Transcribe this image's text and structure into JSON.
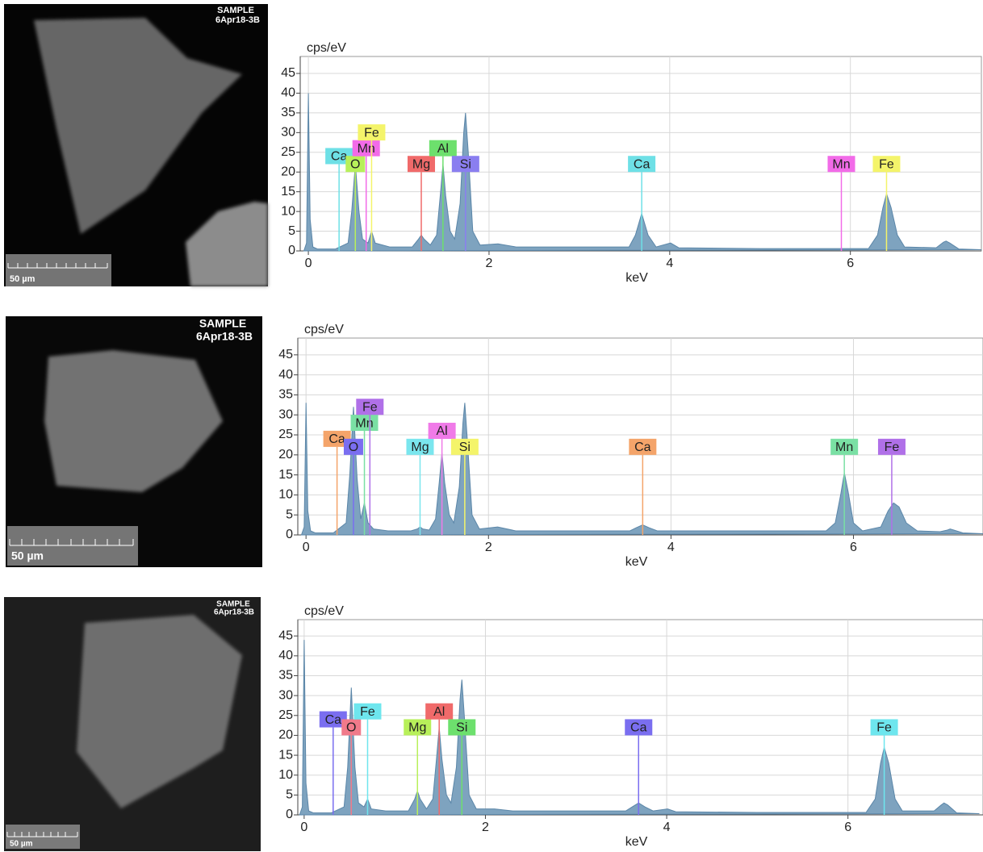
{
  "images": [
    {
      "title": [
        "SAMPLE",
        "6Apr18-3B"
      ],
      "scale": "50 µm"
    },
    {
      "title": [
        "SAMPLE",
        "6Apr18-3B"
      ],
      "scale": "50 µm"
    },
    {
      "title": [
        "SAMPLE",
        "6Apr18-3B"
      ],
      "scale": "50 µm"
    }
  ],
  "chart_data": [
    {
      "type": "area",
      "y_label": "cps/eV",
      "x_label": "keV",
      "xlim": [
        -0.09,
        7.45
      ],
      "ylim": [
        0,
        49.3
      ],
      "xticks": [
        0,
        2,
        4,
        6
      ],
      "yticks": [
        0,
        5,
        10,
        15,
        20,
        25,
        30,
        35,
        40,
        45
      ],
      "grid": true,
      "color": "#7ea3bf",
      "x": [
        -0.05,
        -0.02,
        0,
        0.02,
        0.05,
        0.1,
        0.3,
        0.44,
        0.48,
        0.52,
        0.56,
        0.6,
        0.66,
        0.7,
        0.74,
        0.9,
        1.15,
        1.22,
        1.25,
        1.28,
        1.35,
        1.42,
        1.46,
        1.49,
        1.52,
        1.57,
        1.62,
        1.68,
        1.72,
        1.74,
        1.77,
        1.82,
        1.9,
        2.1,
        2.3,
        3.0,
        3.55,
        3.62,
        3.69,
        3.76,
        3.85,
        4.01,
        4.1,
        5.0,
        6.2,
        6.3,
        6.36,
        6.4,
        6.45,
        6.52,
        6.6,
        6.95,
        7.03,
        7.06,
        7.1,
        7.2,
        7.45
      ],
      "values": [
        0,
        2,
        40,
        8,
        1,
        0.5,
        0.5,
        2,
        10,
        22,
        10,
        3,
        2,
        5,
        2,
        1,
        1,
        3,
        4,
        3,
        1.5,
        4,
        14,
        22,
        14,
        5,
        3,
        12,
        30,
        35,
        25,
        5,
        1.5,
        1.8,
        1,
        1,
        1,
        4,
        9.5,
        4,
        1,
        2,
        0.8,
        0.6,
        0.6,
        4,
        11,
        14.5,
        11,
        4,
        1,
        0.8,
        2.2,
        2.5,
        2,
        0.5,
        0.3
      ],
      "markers": [
        {
          "label": "Ca",
          "x": 0.34,
          "height": 22,
          "color": "#6ee0e6"
        },
        {
          "label": "O",
          "x": 0.52,
          "height": 20,
          "color": "#b8f05a"
        },
        {
          "label": "Mn",
          "x": 0.64,
          "height": 24,
          "color": "#f26be8"
        },
        {
          "label": "Fe",
          "x": 0.7,
          "height": 28,
          "color": "#f4f46a"
        },
        {
          "label": "Mg",
          "x": 1.25,
          "height": 20,
          "color": "#f06a6a"
        },
        {
          "label": "Al",
          "x": 1.49,
          "height": 24,
          "color": "#6de06d"
        },
        {
          "label": "Si",
          "x": 1.74,
          "height": 20,
          "color": "#8a7ef0"
        },
        {
          "label": "Ca",
          "x": 3.69,
          "height": 20,
          "color": "#6ee0e6"
        },
        {
          "label": "Mn",
          "x": 5.9,
          "height": 20,
          "color": "#f26be8"
        },
        {
          "label": "Fe",
          "x": 6.4,
          "height": 20,
          "color": "#f4f46a"
        }
      ]
    },
    {
      "type": "area",
      "y_label": "cps/eV",
      "x_label": "keV",
      "xlim": [
        -0.09,
        7.42
      ],
      "ylim": [
        0,
        49.2
      ],
      "xticks": [
        0,
        2,
        4,
        6
      ],
      "yticks": [
        0,
        5,
        10,
        15,
        20,
        25,
        30,
        35,
        40,
        45
      ],
      "grid": true,
      "color": "#7ea3bf",
      "x": [
        -0.05,
        -0.02,
        0,
        0.02,
        0.05,
        0.1,
        0.3,
        0.44,
        0.48,
        0.52,
        0.56,
        0.6,
        0.64,
        0.68,
        0.74,
        0.9,
        1.15,
        1.22,
        1.25,
        1.28,
        1.35,
        1.42,
        1.46,
        1.49,
        1.52,
        1.57,
        1.62,
        1.68,
        1.72,
        1.74,
        1.77,
        1.82,
        1.9,
        2.1,
        2.3,
        3.0,
        3.55,
        3.62,
        3.69,
        3.76,
        3.85,
        4.5,
        5.7,
        5.8,
        5.86,
        5.9,
        5.94,
        6.0,
        6.1,
        6.3,
        6.38,
        6.44,
        6.5,
        6.58,
        6.7,
        6.95,
        7.03,
        7.06,
        7.1,
        7.2,
        7.42
      ],
      "values": [
        0,
        2,
        33,
        6,
        1,
        0.5,
        0.5,
        3,
        15,
        32,
        14,
        4,
        8,
        3,
        1.5,
        1,
        1,
        1.5,
        2,
        1.5,
        1.2,
        4,
        13,
        20.5,
        13,
        5,
        3,
        12,
        28,
        33,
        23,
        5,
        1.5,
        2,
        1,
        1,
        1,
        1.8,
        2.5,
        1.8,
        1,
        1,
        1,
        3,
        10,
        15.5,
        11,
        3,
        1,
        2,
        6,
        8,
        7,
        3,
        1,
        0.8,
        1.2,
        1.5,
        1.2,
        0.5,
        0.3
      ],
      "markers": [
        {
          "label": "Ca",
          "x": 0.34,
          "height": 22,
          "color": "#f4a46a"
        },
        {
          "label": "O",
          "x": 0.52,
          "height": 20,
          "color": "#7a6ef0"
        },
        {
          "label": "Mn",
          "x": 0.64,
          "height": 26,
          "color": "#7ae0a4"
        },
        {
          "label": "Fe",
          "x": 0.7,
          "height": 30,
          "color": "#b070e8"
        },
        {
          "label": "Mg",
          "x": 1.25,
          "height": 20,
          "color": "#7ae6ee"
        },
        {
          "label": "Al",
          "x": 1.49,
          "height": 24,
          "color": "#f07ae8"
        },
        {
          "label": "Si",
          "x": 1.74,
          "height": 20,
          "color": "#f4f46a"
        },
        {
          "label": "Ca",
          "x": 3.69,
          "height": 20,
          "color": "#f4a46a"
        },
        {
          "label": "Mn",
          "x": 5.9,
          "height": 20,
          "color": "#7ae0a4"
        },
        {
          "label": "Fe",
          "x": 6.42,
          "height": 20,
          "color": "#b070e8"
        }
      ]
    },
    {
      "type": "area",
      "y_label": "cps/eV",
      "x_label": "keV",
      "xlim": [
        -0.07,
        7.49
      ],
      "ylim": [
        0,
        49.1
      ],
      "xticks": [
        0,
        2,
        4,
        6
      ],
      "yticks": [
        0,
        5,
        10,
        15,
        20,
        25,
        30,
        35,
        40,
        45
      ],
      "grid": true,
      "color": "#7ea3bf",
      "x": [
        -0.05,
        -0.02,
        0,
        0.02,
        0.05,
        0.1,
        0.3,
        0.44,
        0.48,
        0.52,
        0.56,
        0.6,
        0.66,
        0.7,
        0.74,
        0.9,
        1.15,
        1.22,
        1.25,
        1.28,
        1.35,
        1.42,
        1.46,
        1.49,
        1.52,
        1.57,
        1.62,
        1.68,
        1.72,
        1.74,
        1.77,
        1.82,
        1.9,
        2.1,
        2.3,
        3.0,
        3.55,
        3.62,
        3.69,
        3.76,
        3.85,
        4.01,
        4.1,
        5.0,
        6.2,
        6.3,
        6.36,
        6.4,
        6.45,
        6.52,
        6.6,
        6.95,
        7.03,
        7.06,
        7.1,
        7.2,
        7.45
      ],
      "values": [
        0,
        2,
        44,
        8,
        1,
        0.5,
        0.5,
        2,
        12,
        32,
        12,
        3,
        2,
        4,
        1.5,
        1,
        1,
        4,
        6,
        4,
        1.5,
        4,
        14,
        22,
        14,
        5,
        3,
        12,
        29,
        34,
        24,
        5,
        1.5,
        1.5,
        1,
        1,
        1,
        2,
        3,
        2,
        1,
        1.5,
        0.8,
        0.6,
        0.6,
        4,
        13,
        17,
        13,
        4,
        1,
        1,
        2.5,
        3,
        2.5,
        0.5,
        0.3
      ],
      "markers": [
        {
          "label": "Ca",
          "x": 0.32,
          "height": 22,
          "color": "#7a6ef0"
        },
        {
          "label": "O",
          "x": 0.52,
          "height": 20,
          "color": "#f07a8a"
        },
        {
          "label": "Fe",
          "x": 0.7,
          "height": 24,
          "color": "#6ee6ee"
        },
        {
          "label": "Mg",
          "x": 1.25,
          "height": 20,
          "color": "#b8f05a"
        },
        {
          "label": "Al",
          "x": 1.49,
          "height": 24,
          "color": "#f06a6a"
        },
        {
          "label": "Si",
          "x": 1.74,
          "height": 20,
          "color": "#6de06d"
        },
        {
          "label": "Ca",
          "x": 3.69,
          "height": 20,
          "color": "#7a6ef0"
        },
        {
          "label": "Fe",
          "x": 6.4,
          "height": 20,
          "color": "#6ee6ee"
        }
      ]
    }
  ]
}
